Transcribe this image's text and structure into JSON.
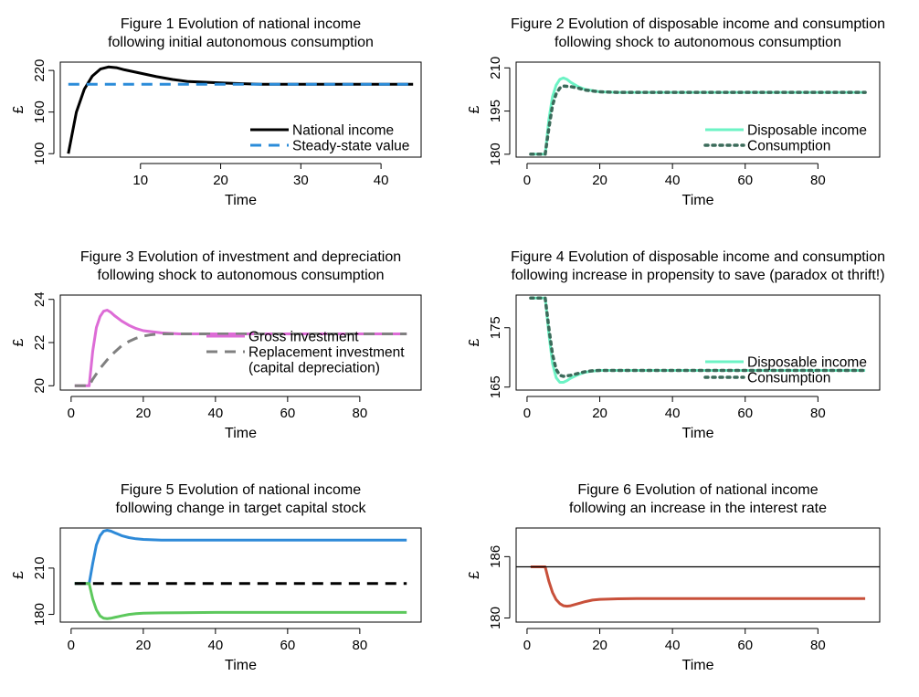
{
  "chart_data": [
    {
      "type": "line",
      "title": "Figure 1  Evolution of national income",
      "subtitle": "following initial autonomous consumption",
      "xlabel": "Time",
      "ylabel": "£",
      "xlim": [
        0,
        45
      ],
      "ylim": [
        95,
        232
      ],
      "xticks": [
        10,
        20,
        30,
        40
      ],
      "yticks": [
        100,
        160,
        220
      ],
      "legend_position": "bottom-right",
      "legend": [
        {
          "label": "National income",
          "color": "#000000",
          "style": "solid"
        },
        {
          "label": "Steady-state value",
          "color": "#2b8cd9",
          "style": "dashed"
        }
      ],
      "series": [
        {
          "name": "National income",
          "color": "#000000",
          "style": "solid",
          "x": [
            1,
            2,
            3,
            4,
            5,
            6,
            7,
            8,
            10,
            12,
            14,
            16,
            18,
            20,
            25,
            30,
            35,
            40,
            44
          ],
          "y": [
            100,
            160,
            193,
            212,
            222,
            225,
            224,
            221,
            216,
            211,
            207,
            204,
            203,
            202,
            200,
            200,
            200,
            200,
            200
          ]
        },
        {
          "name": "Steady-state value",
          "color": "#2b8cd9",
          "style": "dashed",
          "x": [
            1,
            44
          ],
          "y": [
            200,
            200
          ]
        }
      ]
    },
    {
      "type": "line",
      "title": "Figure 2  Evolution of disposable income and consumption",
      "subtitle": "following shock to autonomous consumption",
      "xlabel": "Time",
      "ylabel": "£",
      "xlim": [
        -3,
        97
      ],
      "ylim": [
        179,
        212
      ],
      "xticks": [
        0,
        20,
        40,
        60,
        80
      ],
      "yticks": [
        180,
        195,
        210
      ],
      "legend_position": "bottom-right",
      "legend": [
        {
          "label": "Disposable income",
          "color": "#6df3c5",
          "style": "solid"
        },
        {
          "label": "Consumption",
          "color": "#3b6b5a",
          "style": "dotted"
        }
      ],
      "series": [
        {
          "name": "Disposable income",
          "color": "#6df3c5",
          "style": "solid",
          "x": [
            1,
            5,
            6,
            7,
            8,
            9,
            10,
            11,
            12,
            14,
            16,
            20,
            25,
            30,
            40,
            60,
            93
          ],
          "y": [
            180,
            180,
            192,
            200,
            204,
            206,
            206.5,
            206,
            205,
            203.5,
            202.5,
            201.7,
            201.5,
            201.5,
            201.5,
            201.5,
            201.5
          ]
        },
        {
          "name": "Consumption",
          "color": "#3b6b5a",
          "style": "dotted",
          "x": [
            1,
            5,
            6,
            7,
            8,
            9,
            10,
            12,
            14,
            16,
            20,
            25,
            30,
            40,
            60,
            93
          ],
          "y": [
            180,
            180,
            189,
            197,
            201,
            203,
            203.7,
            203.5,
            203,
            202.3,
            201.7,
            201.5,
            201.5,
            201.5,
            201.5,
            201.5
          ]
        }
      ]
    },
    {
      "type": "line",
      "title": "Figure 3  Evolution of investment and depreciation",
      "subtitle": "following shock to autonomous consumption",
      "xlabel": "Time",
      "ylabel": "£",
      "xlim": [
        -3,
        97
      ],
      "ylim": [
        19.8,
        24.2
      ],
      "xticks": [
        0,
        20,
        40,
        60,
        80
      ],
      "yticks": [
        20,
        22,
        24
      ],
      "legend_position": "right",
      "legend": [
        {
          "label": "Gross investment",
          "color": "#dd6cd6",
          "style": "solid"
        },
        {
          "label": "Replacement investment",
          "color": "#808080",
          "style": "dashed"
        },
        {
          "label": " (capital depreciation)",
          "color": "",
          "style": ""
        }
      ],
      "series": [
        {
          "name": "Gross investment",
          "color": "#dd6cd6",
          "style": "solid",
          "x": [
            1,
            5,
            6,
            7,
            8,
            9,
            10,
            11,
            12,
            14,
            16,
            18,
            20,
            25,
            30,
            40,
            60,
            93
          ],
          "y": [
            20,
            20,
            21.6,
            22.7,
            23.2,
            23.45,
            23.5,
            23.4,
            23.25,
            23,
            22.8,
            22.65,
            22.55,
            22.45,
            22.4,
            22.4,
            22.4,
            22.4
          ]
        },
        {
          "name": "Replacement investment",
          "color": "#808080",
          "style": "dashed",
          "x": [
            1,
            5,
            6,
            8,
            10,
            12,
            14,
            16,
            18,
            20,
            22,
            25,
            30,
            40,
            60,
            93
          ],
          "y": [
            20,
            20,
            20.3,
            20.8,
            21.2,
            21.55,
            21.85,
            22.05,
            22.2,
            22.3,
            22.36,
            22.4,
            22.4,
            22.4,
            22.4,
            22.4
          ]
        }
      ]
    },
    {
      "type": "line",
      "title": "Figure 4  Evolution of disposable income and consumption",
      "subtitle": "following increase in propensity to save (paradox ot thrift!)",
      "xlabel": "Time",
      "ylabel": "£",
      "xlim": [
        -3,
        97
      ],
      "ylim": [
        164.5,
        180.5
      ],
      "xticks": [
        0,
        20,
        40,
        60,
        80
      ],
      "yticks": [
        165,
        175
      ],
      "legend_position": "bottom-right",
      "legend": [
        {
          "label": "Disposable income",
          "color": "#6df3c5",
          "style": "solid"
        },
        {
          "label": "Consumption",
          "color": "#3b6b5a",
          "style": "dotted"
        }
      ],
      "series": [
        {
          "name": "Disposable income",
          "color": "#6df3c5",
          "style": "solid",
          "x": [
            1,
            5,
            6,
            7,
            8,
            9,
            10,
            11,
            12,
            14,
            16,
            18,
            20,
            25,
            30,
            40,
            60,
            93
          ],
          "y": [
            180,
            180,
            174,
            169,
            166.6,
            165.8,
            165.8,
            166.1,
            166.5,
            167.1,
            167.5,
            167.7,
            167.8,
            167.8,
            167.8,
            167.8,
            167.8,
            167.8
          ]
        },
        {
          "name": "Consumption",
          "color": "#3b6b5a",
          "style": "dotted",
          "x": [
            1,
            5,
            6,
            7,
            8,
            9,
            10,
            12,
            14,
            16,
            18,
            20,
            25,
            30,
            40,
            60,
            93
          ],
          "y": [
            180,
            180,
            175,
            170.5,
            168,
            167,
            166.8,
            167,
            167.3,
            167.6,
            167.75,
            167.8,
            167.8,
            167.8,
            167.8,
            167.8,
            167.8
          ]
        }
      ]
    },
    {
      "type": "line",
      "title": "Figure 5  Evolution of national income",
      "subtitle": "following change in target capital stock",
      "xlabel": "Time",
      "ylabel": "£",
      "xlim": [
        -3,
        97
      ],
      "ylim": [
        175,
        236
      ],
      "xticks": [
        0,
        20,
        40,
        60,
        80
      ],
      "yticks": [
        180,
        210
      ],
      "series": [
        {
          "color": "#2e8ad8",
          "style": "solid",
          "x": [
            1,
            5,
            6,
            7,
            8,
            9,
            10,
            11,
            12,
            14,
            16,
            18,
            20,
            25,
            30,
            40,
            60,
            93
          ],
          "y": [
            200,
            200,
            213,
            225,
            231,
            234,
            234.5,
            234,
            233,
            231,
            229.8,
            229,
            228.6,
            228.2,
            228.2,
            228.2,
            228.2,
            228.2
          ]
        },
        {
          "color": "#5cc85c",
          "style": "solid",
          "x": [
            1,
            5,
            6,
            7,
            8,
            9,
            10,
            11,
            12,
            14,
            16,
            18,
            20,
            25,
            30,
            40,
            60,
            93
          ],
          "y": [
            200,
            200,
            190,
            183,
            179,
            177.5,
            177.2,
            177.5,
            178,
            179,
            180,
            180.5,
            180.8,
            181,
            181.1,
            181.3,
            181.3,
            181.3
          ]
        },
        {
          "color": "#000000",
          "style": "dashed",
          "x": [
            1,
            93
          ],
          "y": [
            200,
            200
          ]
        }
      ]
    },
    {
      "type": "line",
      "title": "Figure 6  Evolution of national income",
      "subtitle": "following an increase in the interest rate",
      "xlabel": "Time",
      "ylabel": "£",
      "xlim": [
        -3,
        97
      ],
      "ylim": [
        179.6,
        188.8
      ],
      "xticks": [
        0,
        20,
        40,
        60,
        80
      ],
      "yticks": [
        180,
        186
      ],
      "series": [
        {
          "color": "#c8503a",
          "style": "solid",
          "x": [
            1,
            5,
            6,
            7,
            8,
            9,
            10,
            11,
            12,
            14,
            16,
            18,
            20,
            25,
            30,
            40,
            60,
            93
          ],
          "y": [
            185,
            185,
            183.6,
            182.5,
            181.8,
            181.4,
            181.2,
            181.15,
            181.2,
            181.4,
            181.6,
            181.75,
            181.82,
            181.88,
            181.9,
            181.9,
            181.9,
            181.9
          ]
        },
        {
          "color": "#000000",
          "style": "solid",
          "x": [
            -3,
            97
          ],
          "y": [
            185,
            185
          ]
        }
      ]
    }
  ]
}
